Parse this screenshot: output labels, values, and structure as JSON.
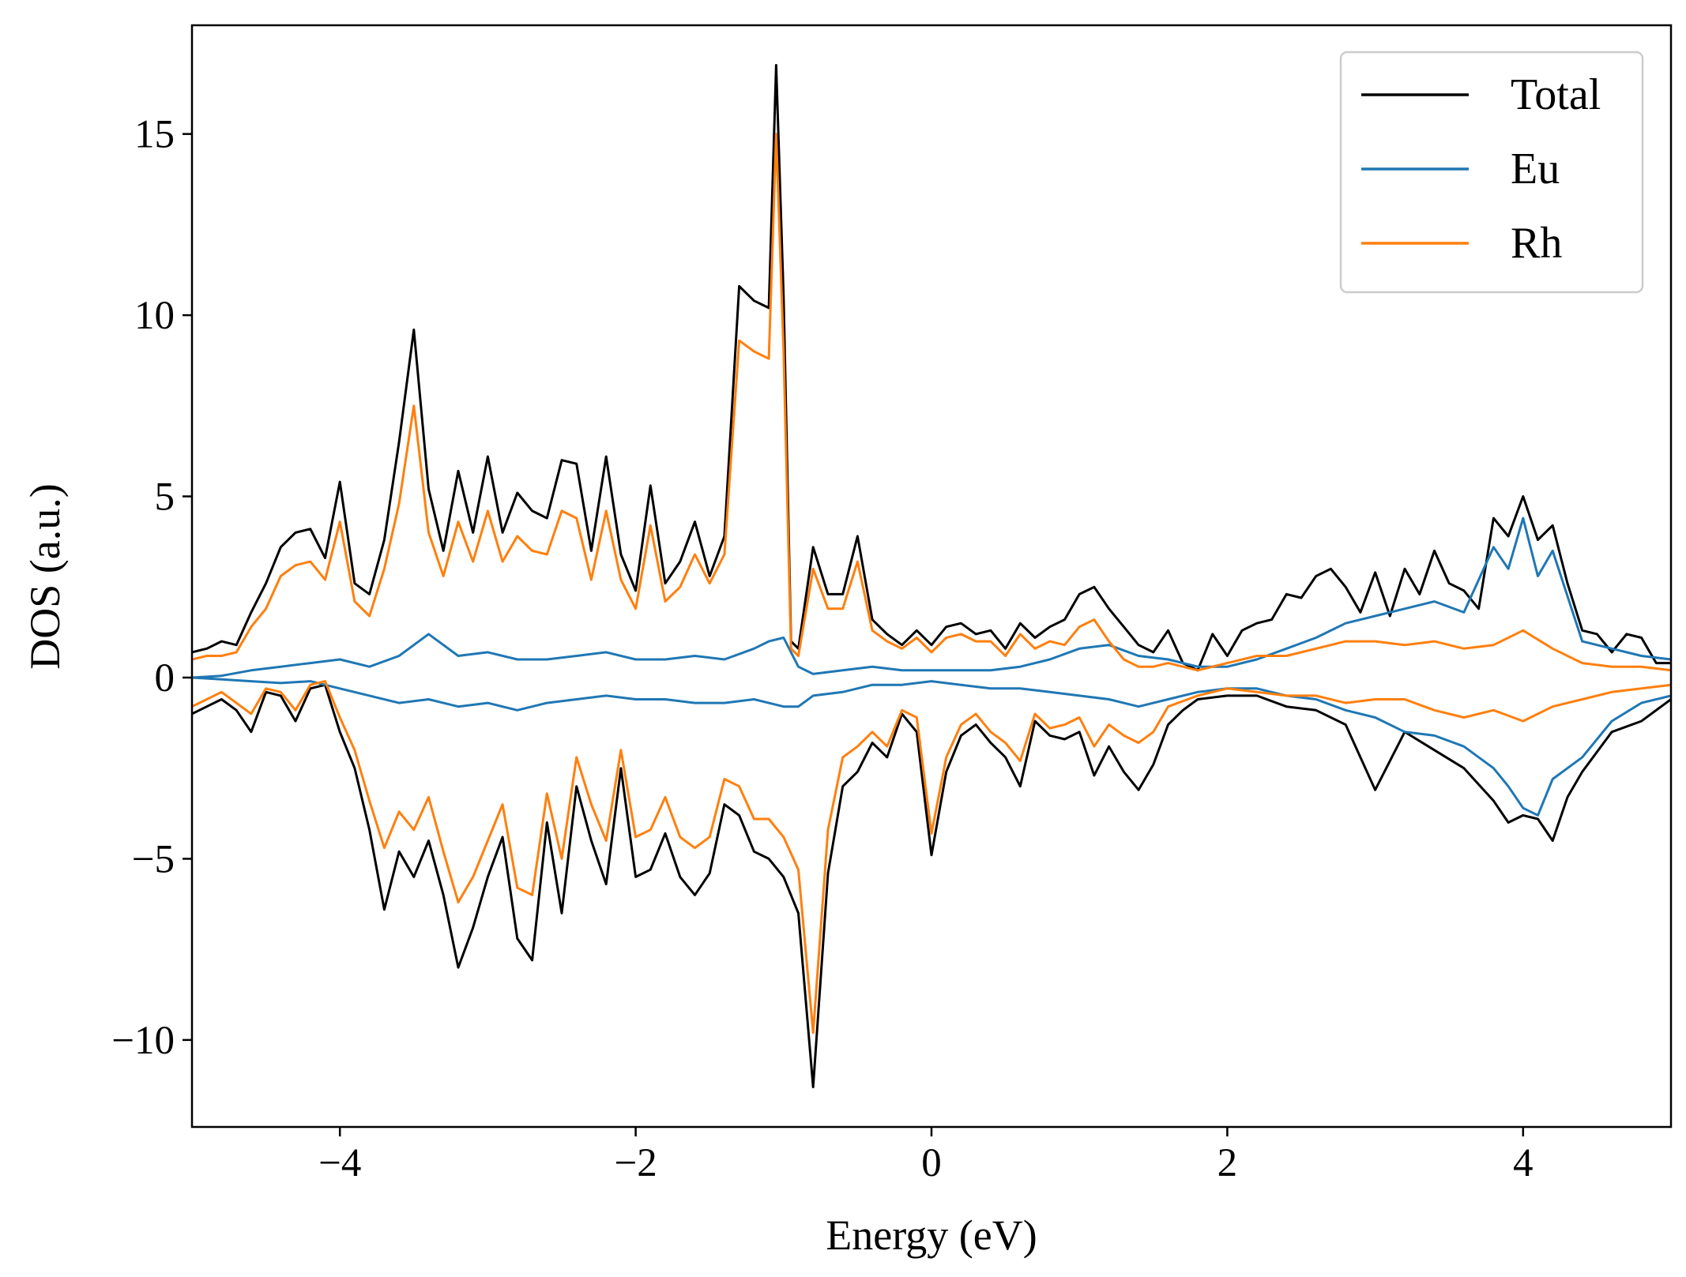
{
  "chart_data": {
    "type": "line",
    "title": "",
    "xlabel": "Energy (eV)",
    "ylabel": "DOS (a.u.)",
    "xlim": [
      -5,
      5
    ],
    "ylim": [
      -12.4,
      18
    ],
    "xticks": [
      -4,
      -2,
      0,
      2,
      4
    ],
    "xtick_labels": [
      "−4",
      "−2",
      "0",
      "2",
      "4"
    ],
    "yticks": [
      -10,
      -5,
      0,
      5,
      10,
      15
    ],
    "ytick_labels": [
      "−10",
      "−5",
      "0",
      "5",
      "10",
      "15"
    ],
    "grid": false,
    "legend_position": "top-right",
    "legend": [
      "Total",
      "Eu",
      "Rh"
    ],
    "series": [
      {
        "name": "Total",
        "color": "#000000",
        "channel": "spin-up",
        "x": [
          -5,
          -4.9,
          -4.8,
          -4.7,
          -4.6,
          -4.5,
          -4.4,
          -4.3,
          -4.2,
          -4.1,
          -4.0,
          -3.9,
          -3.8,
          -3.7,
          -3.6,
          -3.5,
          -3.4,
          -3.3,
          -3.2,
          -3.1,
          -3.0,
          -2.9,
          -2.8,
          -2.7,
          -2.6,
          -2.5,
          -2.4,
          -2.3,
          -2.2,
          -2.1,
          -2.0,
          -1.9,
          -1.8,
          -1.7,
          -1.6,
          -1.5,
          -1.4,
          -1.3,
          -1.2,
          -1.1,
          -1.05,
          -1.0,
          -0.95,
          -0.9,
          -0.8,
          -0.7,
          -0.6,
          -0.5,
          -0.4,
          -0.3,
          -0.2,
          -0.1,
          0,
          0.1,
          0.2,
          0.3,
          0.4,
          0.5,
          0.6,
          0.7,
          0.8,
          0.9,
          1.0,
          1.1,
          1.2,
          1.3,
          1.4,
          1.5,
          1.6,
          1.7,
          1.8,
          1.9,
          2.0,
          2.1,
          2.2,
          2.3,
          2.4,
          2.5,
          2.6,
          2.7,
          2.8,
          2.9,
          3.0,
          3.1,
          3.2,
          3.3,
          3.4,
          3.5,
          3.6,
          3.7,
          3.8,
          3.9,
          4.0,
          4.1,
          4.2,
          4.3,
          4.4,
          4.5,
          4.6,
          4.7,
          4.8,
          4.9,
          5.0
        ],
        "y": [
          0.7,
          0.8,
          1.0,
          0.9,
          1.8,
          2.6,
          3.6,
          4.0,
          4.1,
          3.3,
          5.4,
          2.6,
          2.3,
          3.8,
          6.5,
          9.6,
          5.2,
          3.5,
          5.7,
          4.0,
          6.1,
          4.0,
          5.1,
          4.6,
          4.4,
          6.0,
          5.9,
          3.5,
          6.1,
          3.4,
          2.4,
          5.3,
          2.6,
          3.2,
          4.3,
          2.8,
          3.9,
          10.8,
          10.4,
          10.2,
          16.9,
          10.5,
          1.0,
          0.8,
          3.6,
          2.3,
          2.3,
          3.9,
          1.6,
          1.2,
          0.9,
          1.3,
          0.9,
          1.4,
          1.5,
          1.2,
          1.3,
          0.8,
          1.5,
          1.1,
          1.4,
          1.6,
          2.3,
          2.5,
          1.9,
          1.4,
          0.9,
          0.7,
          1.3,
          0.4,
          0.2,
          1.2,
          0.6,
          1.3,
          1.5,
          1.6,
          2.3,
          2.2,
          2.8,
          3.0,
          2.5,
          1.8,
          2.9,
          1.7,
          3.0,
          2.3,
          3.5,
          2.6,
          2.4,
          1.9,
          4.4,
          3.9,
          5.0,
          3.8,
          4.2,
          2.6,
          1.3,
          1.2,
          0.7,
          1.2,
          1.1,
          0.4,
          0.4
        ]
      },
      {
        "name": "Eu",
        "color": "#1f77b4",
        "channel": "spin-up",
        "x": [
          -5,
          -4.8,
          -4.6,
          -4.4,
          -4.2,
          -4.0,
          -3.8,
          -3.6,
          -3.4,
          -3.2,
          -3.0,
          -2.8,
          -2.6,
          -2.4,
          -2.2,
          -2.0,
          -1.8,
          -1.6,
          -1.4,
          -1.2,
          -1.1,
          -1.0,
          -0.9,
          -0.8,
          -0.6,
          -0.4,
          -0.2,
          0,
          0.2,
          0.4,
          0.6,
          0.8,
          1.0,
          1.2,
          1.4,
          1.6,
          1.8,
          2.0,
          2.2,
          2.4,
          2.6,
          2.8,
          3.0,
          3.2,
          3.4,
          3.6,
          3.8,
          3.9,
          4.0,
          4.1,
          4.2,
          4.4,
          4.6,
          4.8,
          5.0
        ],
        "y": [
          0,
          0.05,
          0.2,
          0.3,
          0.4,
          0.5,
          0.3,
          0.6,
          1.2,
          0.6,
          0.7,
          0.5,
          0.5,
          0.6,
          0.7,
          0.5,
          0.5,
          0.6,
          0.5,
          0.8,
          1.0,
          1.1,
          0.3,
          0.1,
          0.2,
          0.3,
          0.2,
          0.2,
          0.2,
          0.2,
          0.3,
          0.5,
          0.8,
          0.9,
          0.6,
          0.5,
          0.3,
          0.3,
          0.5,
          0.8,
          1.1,
          1.5,
          1.7,
          1.9,
          2.1,
          1.8,
          3.6,
          3.0,
          4.4,
          2.8,
          3.5,
          1.0,
          0.8,
          0.6,
          0.5
        ]
      },
      {
        "name": "Rh",
        "color": "#ff7f0e",
        "channel": "spin-up",
        "x": [
          -5,
          -4.9,
          -4.8,
          -4.7,
          -4.6,
          -4.5,
          -4.4,
          -4.3,
          -4.2,
          -4.1,
          -4.0,
          -3.9,
          -3.8,
          -3.7,
          -3.6,
          -3.5,
          -3.4,
          -3.3,
          -3.2,
          -3.1,
          -3.0,
          -2.9,
          -2.8,
          -2.7,
          -2.6,
          -2.5,
          -2.4,
          -2.3,
          -2.2,
          -2.1,
          -2.0,
          -1.9,
          -1.8,
          -1.7,
          -1.6,
          -1.5,
          -1.4,
          -1.3,
          -1.2,
          -1.1,
          -1.05,
          -1.0,
          -0.95,
          -0.9,
          -0.8,
          -0.7,
          -0.6,
          -0.5,
          -0.4,
          -0.3,
          -0.2,
          -0.1,
          0,
          0.1,
          0.2,
          0.3,
          0.4,
          0.5,
          0.6,
          0.7,
          0.8,
          0.9,
          1.0,
          1.1,
          1.2,
          1.3,
          1.4,
          1.5,
          1.6,
          1.7,
          1.8,
          2.0,
          2.2,
          2.4,
          2.6,
          2.8,
          3.0,
          3.2,
          3.4,
          3.6,
          3.8,
          4.0,
          4.2,
          4.4,
          4.6,
          4.8,
          5.0
        ],
        "y": [
          0.5,
          0.6,
          0.6,
          0.7,
          1.4,
          1.9,
          2.8,
          3.1,
          3.2,
          2.7,
          4.3,
          2.1,
          1.7,
          3.0,
          4.8,
          7.5,
          4.0,
          2.8,
          4.3,
          3.2,
          4.6,
          3.2,
          3.9,
          3.5,
          3.4,
          4.6,
          4.4,
          2.7,
          4.6,
          2.7,
          1.9,
          4.2,
          2.1,
          2.5,
          3.4,
          2.6,
          3.4,
          9.3,
          9.0,
          8.8,
          15.0,
          9.0,
          0.8,
          0.6,
          3.0,
          1.9,
          1.9,
          3.2,
          1.3,
          1.0,
          0.8,
          1.1,
          0.7,
          1.1,
          1.2,
          1.0,
          1.0,
          0.6,
          1.2,
          0.8,
          1.0,
          0.9,
          1.4,
          1.6,
          1.0,
          0.5,
          0.3,
          0.3,
          0.4,
          0.3,
          0.2,
          0.4,
          0.6,
          0.6,
          0.8,
          1.0,
          1.0,
          0.9,
          1.0,
          0.8,
          0.9,
          1.3,
          0.8,
          0.4,
          0.3,
          0.3,
          0.2
        ]
      },
      {
        "name": "Total",
        "color": "#000000",
        "channel": "spin-down",
        "x": [
          -5,
          -4.9,
          -4.8,
          -4.7,
          -4.6,
          -4.5,
          -4.4,
          -4.3,
          -4.2,
          -4.1,
          -4.0,
          -3.9,
          -3.8,
          -3.7,
          -3.6,
          -3.5,
          -3.4,
          -3.3,
          -3.2,
          -3.1,
          -3.0,
          -2.9,
          -2.8,
          -2.7,
          -2.6,
          -2.5,
          -2.4,
          -2.3,
          -2.2,
          -2.1,
          -2.0,
          -1.9,
          -1.8,
          -1.7,
          -1.6,
          -1.5,
          -1.4,
          -1.3,
          -1.2,
          -1.1,
          -1.0,
          -0.9,
          -0.8,
          -0.7,
          -0.6,
          -0.5,
          -0.4,
          -0.3,
          -0.2,
          -0.1,
          0,
          0.1,
          0.2,
          0.3,
          0.4,
          0.5,
          0.6,
          0.7,
          0.8,
          0.9,
          1.0,
          1.1,
          1.2,
          1.3,
          1.4,
          1.5,
          1.6,
          1.7,
          1.8,
          2.0,
          2.2,
          2.4,
          2.6,
          2.8,
          3.0,
          3.2,
          3.4,
          3.6,
          3.8,
          3.9,
          4.0,
          4.1,
          4.2,
          4.3,
          4.4,
          4.6,
          4.8,
          5.0
        ],
        "y": [
          -1.0,
          -0.8,
          -0.6,
          -0.9,
          -1.5,
          -0.4,
          -0.5,
          -1.2,
          -0.3,
          -0.2,
          -1.5,
          -2.5,
          -4.2,
          -6.4,
          -4.8,
          -5.5,
          -4.5,
          -6.0,
          -8.0,
          -6.9,
          -5.5,
          -4.4,
          -7.2,
          -7.8,
          -4.0,
          -6.5,
          -3.0,
          -4.5,
          -5.7,
          -2.5,
          -5.5,
          -5.3,
          -4.3,
          -5.5,
          -6.0,
          -5.4,
          -3.5,
          -3.8,
          -4.8,
          -5.0,
          -5.5,
          -6.5,
          -11.3,
          -5.4,
          -3.0,
          -2.6,
          -1.8,
          -2.2,
          -1.0,
          -1.5,
          -4.9,
          -2.6,
          -1.6,
          -1.3,
          -1.8,
          -2.2,
          -3.0,
          -1.2,
          -1.6,
          -1.7,
          -1.5,
          -2.7,
          -1.9,
          -2.6,
          -3.1,
          -2.4,
          -1.3,
          -0.9,
          -0.6,
          -0.5,
          -0.5,
          -0.8,
          -0.9,
          -1.3,
          -3.1,
          -1.5,
          -2.0,
          -2.5,
          -3.4,
          -4.0,
          -3.8,
          -3.9,
          -4.5,
          -3.3,
          -2.6,
          -1.5,
          -1.2,
          -0.6
        ]
      },
      {
        "name": "Eu",
        "color": "#1f77b4",
        "channel": "spin-down",
        "x": [
          -5,
          -4.8,
          -4.6,
          -4.4,
          -4.2,
          -4.0,
          -3.8,
          -3.6,
          -3.4,
          -3.2,
          -3.0,
          -2.8,
          -2.6,
          -2.4,
          -2.2,
          -2.0,
          -1.8,
          -1.6,
          -1.4,
          -1.2,
          -1.0,
          -0.9,
          -0.8,
          -0.6,
          -0.4,
          -0.2,
          0,
          0.2,
          0.4,
          0.6,
          0.8,
          1.0,
          1.2,
          1.4,
          1.6,
          1.8,
          2.0,
          2.2,
          2.4,
          2.6,
          2.8,
          3.0,
          3.2,
          3.4,
          3.6,
          3.8,
          3.9,
          4.0,
          4.1,
          4.2,
          4.4,
          4.6,
          4.8,
          5.0
        ],
        "y": [
          0,
          -0.05,
          -0.1,
          -0.15,
          -0.1,
          -0.3,
          -0.5,
          -0.7,
          -0.6,
          -0.8,
          -0.7,
          -0.9,
          -0.7,
          -0.6,
          -0.5,
          -0.6,
          -0.6,
          -0.7,
          -0.7,
          -0.6,
          -0.8,
          -0.8,
          -0.5,
          -0.4,
          -0.2,
          -0.2,
          -0.1,
          -0.2,
          -0.3,
          -0.3,
          -0.4,
          -0.5,
          -0.6,
          -0.8,
          -0.6,
          -0.4,
          -0.3,
          -0.3,
          -0.5,
          -0.6,
          -0.9,
          -1.1,
          -1.5,
          -1.6,
          -1.9,
          -2.5,
          -3.0,
          -3.6,
          -3.8,
          -2.8,
          -2.2,
          -1.2,
          -0.7,
          -0.5
        ]
      },
      {
        "name": "Rh",
        "color": "#ff7f0e",
        "channel": "spin-down",
        "x": [
          -5,
          -4.9,
          -4.8,
          -4.7,
          -4.6,
          -4.5,
          -4.4,
          -4.3,
          -4.2,
          -4.1,
          -4.0,
          -3.9,
          -3.8,
          -3.7,
          -3.6,
          -3.5,
          -3.4,
          -3.3,
          -3.2,
          -3.1,
          -3.0,
          -2.9,
          -2.8,
          -2.7,
          -2.6,
          -2.5,
          -2.4,
          -2.3,
          -2.2,
          -2.1,
          -2.0,
          -1.9,
          -1.8,
          -1.7,
          -1.6,
          -1.5,
          -1.4,
          -1.3,
          -1.2,
          -1.1,
          -1.0,
          -0.9,
          -0.8,
          -0.7,
          -0.6,
          -0.5,
          -0.4,
          -0.3,
          -0.2,
          -0.1,
          0,
          0.1,
          0.2,
          0.3,
          0.4,
          0.5,
          0.6,
          0.7,
          0.8,
          0.9,
          1.0,
          1.1,
          1.2,
          1.3,
          1.4,
          1.5,
          1.6,
          1.8,
          2.0,
          2.2,
          2.4,
          2.6,
          2.8,
          3.0,
          3.2,
          3.4,
          3.6,
          3.8,
          4.0,
          4.2,
          4.4,
          4.6,
          4.8,
          5.0
        ],
        "y": [
          -0.8,
          -0.6,
          -0.4,
          -0.7,
          -1.0,
          -0.3,
          -0.4,
          -0.9,
          -0.2,
          -0.1,
          -1.1,
          -2.0,
          -3.4,
          -4.7,
          -3.7,
          -4.2,
          -3.3,
          -4.8,
          -6.2,
          -5.5,
          -4.5,
          -3.5,
          -5.8,
          -6.0,
          -3.2,
          -5.0,
          -2.2,
          -3.5,
          -4.5,
          -2.0,
          -4.4,
          -4.2,
          -3.3,
          -4.4,
          -4.7,
          -4.4,
          -2.8,
          -3.0,
          -3.9,
          -3.9,
          -4.4,
          -5.3,
          -9.8,
          -4.2,
          -2.2,
          -1.9,
          -1.5,
          -1.9,
          -0.9,
          -1.1,
          -4.3,
          -2.2,
          -1.3,
          -1.0,
          -1.5,
          -1.8,
          -2.3,
          -1.0,
          -1.4,
          -1.3,
          -1.1,
          -1.9,
          -1.3,
          -1.6,
          -1.8,
          -1.5,
          -0.8,
          -0.5,
          -0.3,
          -0.4,
          -0.5,
          -0.5,
          -0.7,
          -0.6,
          -0.6,
          -0.9,
          -1.1,
          -0.9,
          -1.2,
          -0.8,
          -0.6,
          -0.4,
          -0.3,
          -0.2
        ]
      }
    ]
  }
}
